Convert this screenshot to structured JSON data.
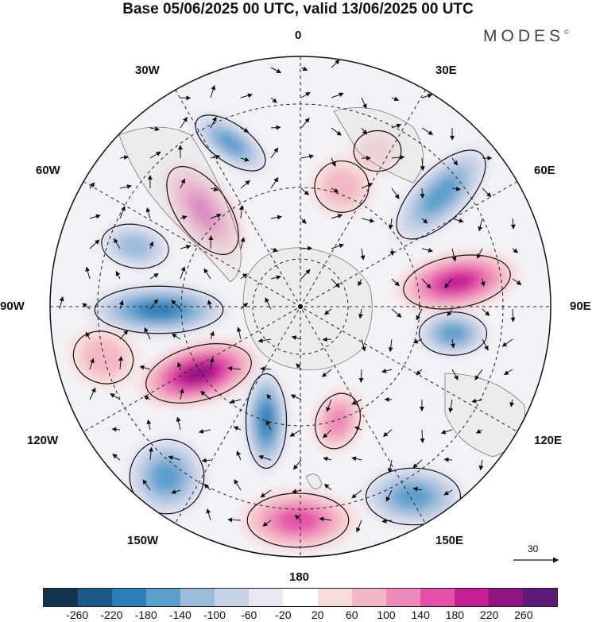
{
  "title": "Base 05/06/2025 00 UTC, valid 13/06/2025 00 UTC",
  "brand": "MODES",
  "brand_mark": "©",
  "labels": {
    "lon_0": "0",
    "lon_30e": "30E",
    "lon_60e": "60E",
    "lon_90e": "90E",
    "lon_120e": "120E",
    "lon_150e": "150E",
    "lon_180": "180",
    "lon_150w": "150W",
    "lon_120w": "120W",
    "lon_90w": "90W",
    "lon_60w": "60W",
    "lon_30w": "30W"
  },
  "reference_vector": "30",
  "colorbar": {
    "colors": [
      "#14344f",
      "#1a5a88",
      "#2d7db6",
      "#5d9fcc",
      "#9cbcdc",
      "#c8d1e6",
      "#e8e8f2",
      "#ffffff",
      "#f8dcdc",
      "#f3b8c5",
      "#ee8ab8",
      "#e352a8",
      "#c41f93",
      "#8f1480",
      "#5e1a78"
    ],
    "tick_labels": [
      "-260",
      "-220",
      "-180",
      "-140",
      "-100",
      "-60",
      "-20",
      "20",
      "60",
      "100",
      "140",
      "180",
      "220",
      "260"
    ]
  },
  "anomalies": [
    {
      "sign": "neg",
      "level": 4
    },
    {
      "sign": "pos",
      "level": 5
    },
    {
      "sign": "neg",
      "level": 5
    },
    {
      "sign": "pos",
      "level": 6
    },
    {
      "sign": "neg",
      "level": 5
    },
    {
      "sign": "pos",
      "level": 3
    },
    {
      "sign": "neg",
      "level": 4
    },
    {
      "sign": "neg",
      "level": 4
    },
    {
      "sign": "pos",
      "level": 4
    },
    {
      "sign": "neg",
      "level": 4
    },
    {
      "sign": "pos",
      "level": 5
    },
    {
      "sign": "neg",
      "level": 4
    },
    {
      "sign": "pos",
      "level": 2
    },
    {
      "sign": "pos",
      "level": 2
    },
    {
      "sign": "neg",
      "level": 3
    },
    {
      "sign": "pos",
      "level": 2
    }
  ]
}
